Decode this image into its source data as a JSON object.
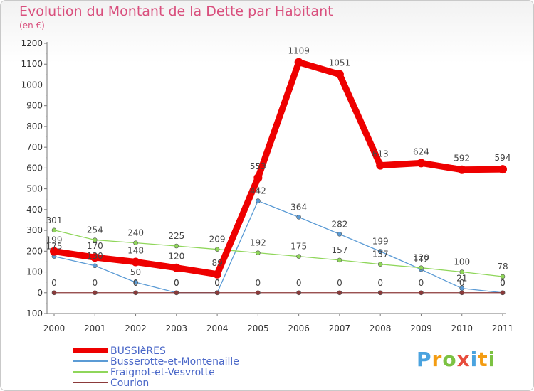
{
  "chart_data": {
    "type": "line",
    "title": "Evolution du Montant de la Dette par Habitant",
    "subtitle": "(en €)",
    "x": [
      "2000",
      "2001",
      "2002",
      "2003",
      "2004",
      "2005",
      "2006",
      "2007",
      "2008",
      "2009",
      "2010",
      "2011"
    ],
    "ylim": [
      -100,
      1200
    ],
    "yticks": [
      -100,
      0,
      100,
      200,
      300,
      400,
      500,
      600,
      700,
      800,
      900,
      1000,
      1100,
      1200
    ],
    "grid": false,
    "legend_position": "bottom-left",
    "series": [
      {
        "name": "BUSSIèRES",
        "color": "#ee0000",
        "values": [
          199,
          170,
          148,
          120,
          89,
          553,
          1109,
          1051,
          613,
          624,
          592,
          594
        ],
        "labels": [
          "199",
          "170",
          "148",
          "120",
          "89",
          "553",
          "1109",
          "1051",
          "613",
          "624",
          "592",
          "594"
        ]
      },
      {
        "name": "Busserotte-et-Montenaille",
        "color": "#5b9bd5",
        "values": [
          175,
          130,
          50,
          0,
          0,
          442,
          364,
          282,
          199,
          112,
          21,
          0
        ],
        "labels": [
          "175",
          "130",
          "50",
          "0",
          "0",
          "442",
          "364",
          "282",
          "199",
          "112",
          "21",
          "0"
        ]
      },
      {
        "name": "Fraignot-et-Vesvrotte",
        "color": "#8fd65a",
        "values": [
          301,
          254,
          240,
          225,
          209,
          192,
          175,
          157,
          137,
          120,
          100,
          78
        ],
        "labels": [
          "301",
          "254",
          "240",
          "225",
          "209",
          "192",
          "175",
          "157",
          "137",
          "120",
          "100",
          "78"
        ]
      },
      {
        "name": "Courlon",
        "color": "#8b3a3a",
        "values": [
          0,
          0,
          0,
          0,
          0,
          0,
          0,
          0,
          0,
          0,
          0,
          0
        ],
        "labels": [
          "0",
          "0",
          "0",
          "0",
          "0",
          "0",
          "0",
          "0",
          "0",
          "0",
          "0",
          "0"
        ]
      }
    ]
  },
  "brand": {
    "letters": [
      "P",
      "r",
      "o",
      "x",
      "i",
      "t",
      "i"
    ],
    "colors": [
      "#4aa3df",
      "#f39c12",
      "#7cc242",
      "#e74c3c",
      "#4aa3df",
      "#f39c12",
      "#7cc242"
    ]
  }
}
